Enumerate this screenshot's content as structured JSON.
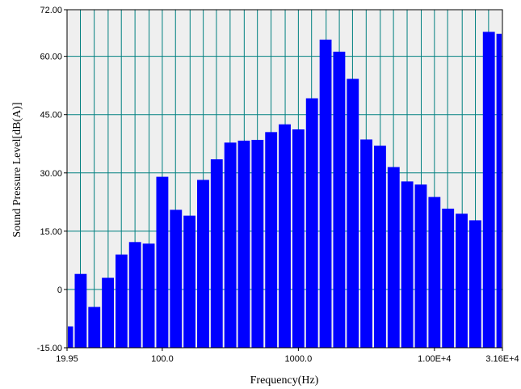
{
  "chart_data": {
    "type": "bar",
    "xlabel": "Frequency(Hz)",
    "ylabel": "Sound Pressure Level[dB(A)]",
    "xscale": "log",
    "xlim": [
      19.95,
      31600
    ],
    "ylim": [
      -15,
      72
    ],
    "grid": true,
    "bar_color": "#0000ff",
    "plot_background": "#efefef",
    "grid_color": "#008080",
    "y_ticks": [
      {
        "value": -15,
        "label": "-15.00"
      },
      {
        "value": 0,
        "label": "0"
      },
      {
        "value": 15,
        "label": "15.00"
      },
      {
        "value": 30,
        "label": "30.00"
      },
      {
        "value": 45,
        "label": "45.00"
      },
      {
        "value": 60,
        "label": "60.00"
      },
      {
        "value": 72,
        "label": "72.00"
      }
    ],
    "x_ticks": [
      {
        "value": 19.95,
        "label": "19.95"
      },
      {
        "value": 100,
        "label": "100.0"
      },
      {
        "value": 1000,
        "label": "1000.0"
      },
      {
        "value": 10000,
        "label": "1.00E+4"
      },
      {
        "value": 31600,
        "label": "3.16E+4"
      }
    ],
    "x_gridlines": [
      19.95,
      25,
      31.6,
      40,
      50,
      63,
      80,
      100,
      125,
      160,
      200,
      250,
      315,
      400,
      500,
      630,
      800,
      1000,
      1250,
      1600,
      2000,
      2500,
      3150,
      4000,
      5000,
      6300,
      8000,
      10000,
      12500,
      16000,
      20000,
      25000,
      31600
    ],
    "bars": [
      {
        "lo": 19.95,
        "hi": 22.4,
        "value": -9.5
      },
      {
        "lo": 22.4,
        "hi": 28.2,
        "value": 4.0
      },
      {
        "lo": 28.2,
        "hi": 35.5,
        "value": -4.5
      },
      {
        "lo": 35.5,
        "hi": 44.7,
        "value": 3.0
      },
      {
        "lo": 44.7,
        "hi": 56.2,
        "value": 9.0
      },
      {
        "lo": 56.2,
        "hi": 70.8,
        "value": 12.2
      },
      {
        "lo": 70.8,
        "hi": 89.1,
        "value": 11.8
      },
      {
        "lo": 89.1,
        "hi": 112.2,
        "value": 29.0
      },
      {
        "lo": 112.2,
        "hi": 141.3,
        "value": 20.5
      },
      {
        "lo": 141.3,
        "hi": 177.8,
        "value": 19.0
      },
      {
        "lo": 177.8,
        "hi": 223.9,
        "value": 28.2
      },
      {
        "lo": 223.9,
        "hi": 281.8,
        "value": 33.5
      },
      {
        "lo": 281.8,
        "hi": 354.8,
        "value": 37.8
      },
      {
        "lo": 354.8,
        "hi": 446.7,
        "value": 38.3
      },
      {
        "lo": 446.7,
        "hi": 562.3,
        "value": 38.5
      },
      {
        "lo": 562.3,
        "hi": 707.9,
        "value": 40.5
      },
      {
        "lo": 707.9,
        "hi": 891.3,
        "value": 42.5
      },
      {
        "lo": 891.3,
        "hi": 1122,
        "value": 41.2
      },
      {
        "lo": 1122,
        "hi": 1413,
        "value": 49.2
      },
      {
        "lo": 1413,
        "hi": 1778,
        "value": 64.3
      },
      {
        "lo": 1778,
        "hi": 2239,
        "value": 61.2
      },
      {
        "lo": 2239,
        "hi": 2818,
        "value": 54.2
      },
      {
        "lo": 2818,
        "hi": 3548,
        "value": 38.6
      },
      {
        "lo": 3548,
        "hi": 4467,
        "value": 37.0
      },
      {
        "lo": 4467,
        "hi": 5623,
        "value": 31.5
      },
      {
        "lo": 5623,
        "hi": 7079,
        "value": 27.8
      },
      {
        "lo": 7079,
        "hi": 8913,
        "value": 27.0
      },
      {
        "lo": 8913,
        "hi": 11220,
        "value": 23.8
      },
      {
        "lo": 11220,
        "hi": 14130,
        "value": 20.8
      },
      {
        "lo": 14130,
        "hi": 17780,
        "value": 19.5
      },
      {
        "lo": 17780,
        "hi": 22390,
        "value": 17.8
      },
      {
        "lo": 22390,
        "hi": 28180,
        "value": 66.3
      },
      {
        "lo": 28180,
        "hi": 31600,
        "value": 65.8
      }
    ]
  }
}
